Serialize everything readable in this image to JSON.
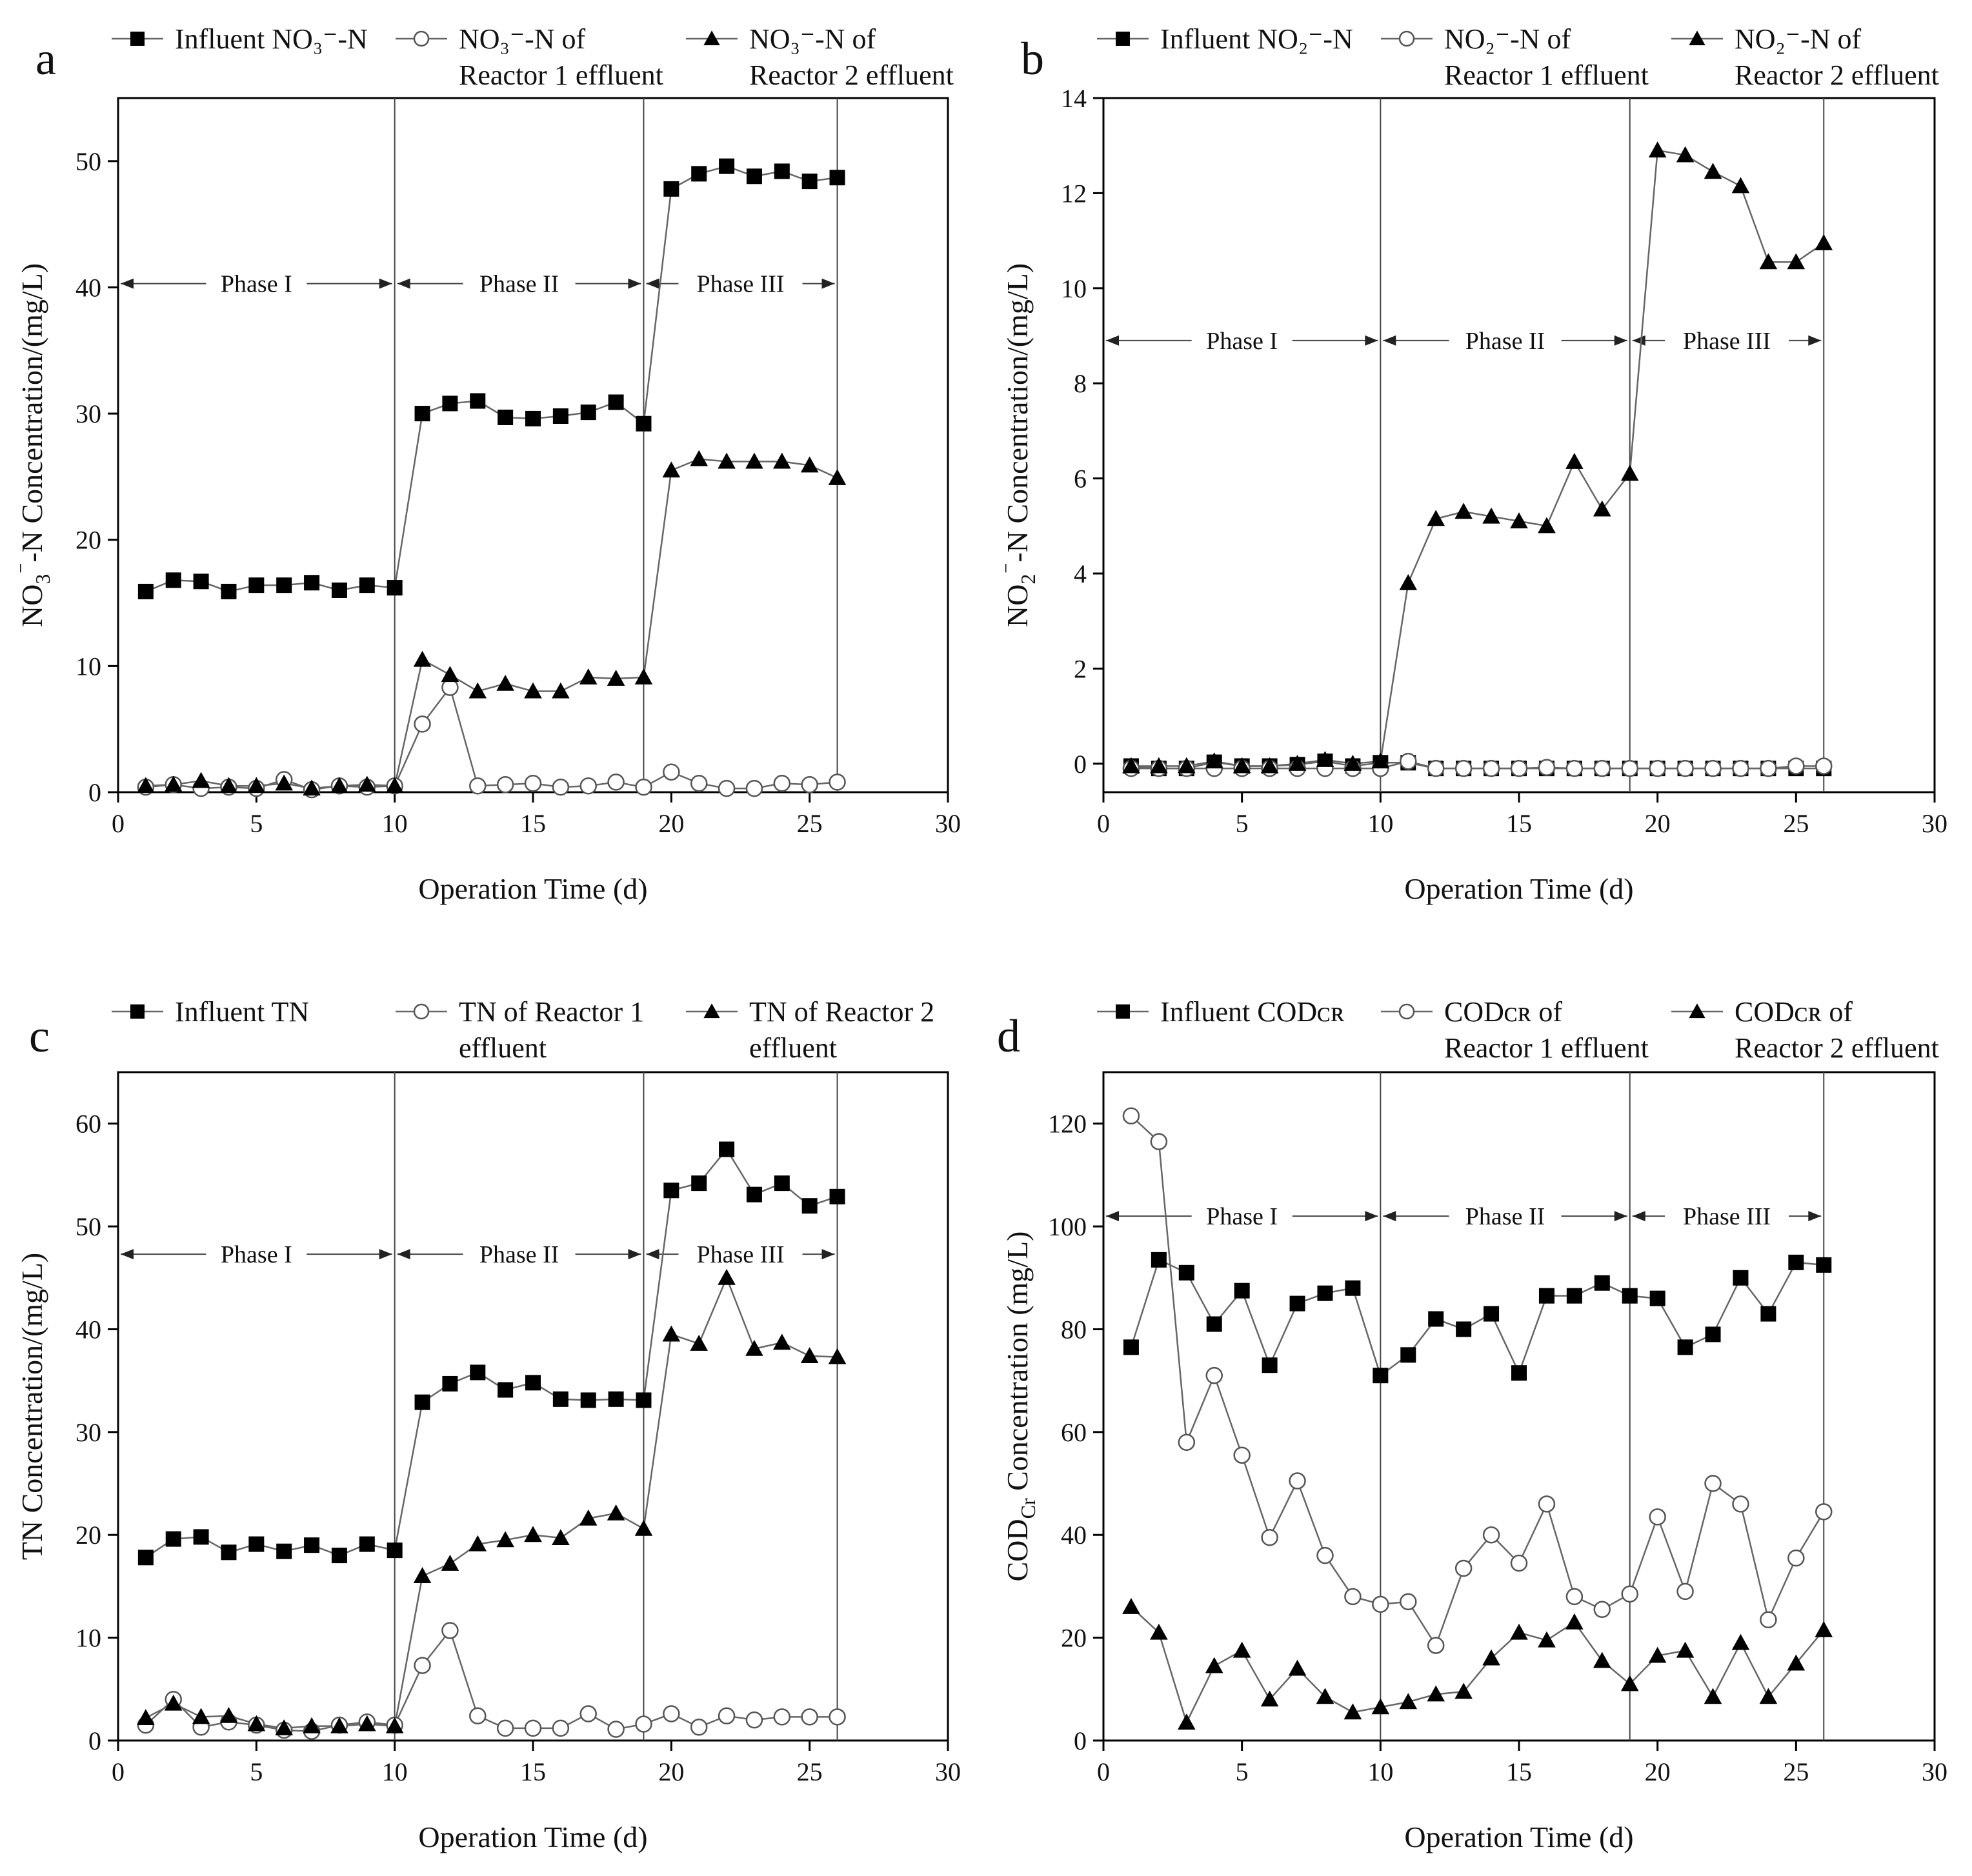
{
  "chart_data": [
    {
      "id": "a",
      "type": "line",
      "panel_label": "a",
      "xlabel": "Operation Time (d)",
      "ylabel_parts": [
        "NO",
        "3",
        "⁻",
        "-N  Concentration/(mg/L)"
      ],
      "xlim": [
        0,
        30
      ],
      "ylim": [
        0,
        55
      ],
      "xticks": [
        0,
        5,
        10,
        15,
        20,
        25,
        30
      ],
      "yticks": [
        0,
        10,
        20,
        30,
        40,
        50
      ],
      "phase_boundaries": [
        10,
        19,
        26
      ],
      "phase_y": 40.3,
      "phases": [
        {
          "label": "Phase I",
          "x0": 0,
          "x1": 10
        },
        {
          "label": "Phase II",
          "x0": 10,
          "x1": 19
        },
        {
          "label": "Phase III",
          "x0": 19,
          "x1": 26
        }
      ],
      "legend": [
        {
          "marker": "square",
          "lines": [
            "Influent  NO₃⁻-N"
          ]
        },
        {
          "marker": "circle",
          "lines": [
            "NO₃⁻-N of",
            "Reactor 1 effluent"
          ]
        },
        {
          "marker": "triangle",
          "lines": [
            "NO₃⁻-N of",
            "Reactor 2 effluent"
          ]
        }
      ],
      "x": [
        1,
        2,
        3,
        4,
        5,
        6,
        7,
        8,
        9,
        10,
        11,
        12,
        13,
        14,
        15,
        16,
        17,
        18,
        19,
        20,
        21,
        22,
        23,
        24,
        25,
        26
      ],
      "series": [
        {
          "name": "Influent NO3--N",
          "marker": "square",
          "values": [
            15.9,
            16.8,
            16.7,
            15.9,
            16.4,
            16.4,
            16.6,
            16.0,
            16.4,
            16.2,
            30.0,
            30.8,
            31.0,
            29.7,
            29.6,
            29.8,
            30.1,
            30.9,
            29.2,
            47.8,
            49.0,
            49.6,
            48.8,
            49.2,
            48.4,
            48.7
          ]
        },
        {
          "name": "NO3--N of Reactor 1 effluent",
          "marker": "circle",
          "values": [
            0.4,
            0.6,
            0.3,
            0.4,
            0.3,
            1.0,
            0.2,
            0.5,
            0.4,
            0.5,
            5.4,
            8.3,
            0.5,
            0.6,
            0.7,
            0.4,
            0.5,
            0.8,
            0.4,
            1.6,
            0.7,
            0.3,
            0.3,
            0.7,
            0.6,
            0.8
          ]
        },
        {
          "name": "NO3--N of Reactor 2 effluent",
          "marker": "triangle",
          "values": [
            0.5,
            0.6,
            0.9,
            0.5,
            0.5,
            0.7,
            0.3,
            0.5,
            0.6,
            0.5,
            10.5,
            9.3,
            8.0,
            8.6,
            8.0,
            8.0,
            9.1,
            9.0,
            9.1,
            25.5,
            26.4,
            26.2,
            26.2,
            26.2,
            25.9,
            24.9
          ]
        }
      ]
    },
    {
      "id": "b",
      "type": "line",
      "panel_label": "b",
      "xlabel": "Operation Time (d)",
      "ylabel_parts": [
        "NO",
        "2",
        "⁻",
        "-N  Concentration/(mg/L)"
      ],
      "xlim": [
        0,
        30
      ],
      "ylim": [
        -0.6,
        14
      ],
      "xticks": [
        0,
        5,
        10,
        15,
        20,
        25,
        30
      ],
      "yticks": [
        0,
        2,
        4,
        6,
        8,
        10,
        12,
        14
      ],
      "phase_boundaries": [
        10,
        19,
        26
      ],
      "phase_y": 8.9,
      "phases": [
        {
          "label": "Phase I",
          "x0": 0,
          "x1": 10
        },
        {
          "label": "Phase II",
          "x0": 10,
          "x1": 19
        },
        {
          "label": "Phase III",
          "x0": 19,
          "x1": 26
        }
      ],
      "legend": [
        {
          "marker": "square",
          "lines": [
            "Influent  NO₂⁻-N"
          ]
        },
        {
          "marker": "circle",
          "lines": [
            "NO₂⁻-N of",
            "Reactor 1 effluent"
          ]
        },
        {
          "marker": "triangle",
          "lines": [
            "NO₂⁻-N of",
            "Reactor 2 effluent"
          ]
        }
      ],
      "x": [
        1,
        2,
        3,
        4,
        5,
        6,
        7,
        8,
        9,
        10,
        11,
        12,
        13,
        14,
        15,
        16,
        17,
        18,
        19,
        20,
        21,
        22,
        23,
        24,
        25,
        26
      ],
      "series": [
        {
          "name": "Influent NO2--N",
          "marker": "square",
          "values": [
            -0.05,
            -0.1,
            -0.1,
            0.03,
            -0.05,
            -0.05,
            -0.02,
            0.05,
            -0.05,
            0.02,
            0.02,
            -0.1,
            -0.1,
            -0.1,
            -0.1,
            -0.1,
            -0.1,
            -0.1,
            -0.1,
            -0.1,
            -0.1,
            -0.1,
            -0.1,
            -0.1,
            -0.1,
            -0.1
          ]
        },
        {
          "name": "NO2--N of Reactor 1 effluent",
          "marker": "circle",
          "values": [
            -0.1,
            -0.1,
            -0.1,
            -0.1,
            -0.1,
            -0.1,
            -0.1,
            -0.1,
            -0.1,
            -0.1,
            0.05,
            -0.1,
            -0.1,
            -0.1,
            -0.1,
            -0.08,
            -0.1,
            -0.1,
            -0.1,
            -0.1,
            -0.1,
            -0.1,
            -0.1,
            -0.1,
            -0.05,
            -0.05
          ]
        },
        {
          "name": "NO2--N of Reactor 2 effluent",
          "marker": "triangle",
          "values": [
            -0.05,
            -0.05,
            -0.05,
            0.05,
            -0.05,
            -0.05,
            0.0,
            0.08,
            0.0,
            0.05,
            3.8,
            5.15,
            5.3,
            5.2,
            5.1,
            5.0,
            6.35,
            5.35,
            6.1,
            12.9,
            12.8,
            12.45,
            12.15,
            10.55,
            10.55,
            10.95
          ]
        }
      ]
    },
    {
      "id": "c",
      "type": "line",
      "panel_label": "c",
      "xlabel": "Operation Time (d)",
      "ylabel_parts": [
        "TN  Concentration/(mg/L)"
      ],
      "xlim": [
        0,
        30
      ],
      "ylim": [
        0,
        65
      ],
      "xticks": [
        0,
        5,
        10,
        15,
        20,
        25,
        30
      ],
      "yticks": [
        0,
        10,
        20,
        30,
        40,
        50,
        60
      ],
      "phase_boundaries": [
        10,
        19,
        26
      ],
      "phase_y": 47.3,
      "phases": [
        {
          "label": "Phase I",
          "x0": 0,
          "x1": 10
        },
        {
          "label": "Phase II",
          "x0": 10,
          "x1": 19
        },
        {
          "label": "Phase III",
          "x0": 19,
          "x1": 26
        }
      ],
      "legend": [
        {
          "marker": "square",
          "lines": [
            "Influent  TN"
          ]
        },
        {
          "marker": "circle",
          "lines": [
            "TN of Reactor 1",
            "effluent"
          ]
        },
        {
          "marker": "triangle",
          "lines": [
            "TN of Reactor 2",
            "effluent"
          ]
        }
      ],
      "x": [
        1,
        2,
        3,
        4,
        5,
        6,
        7,
        8,
        9,
        10,
        11,
        12,
        13,
        14,
        15,
        16,
        17,
        18,
        19,
        20,
        21,
        22,
        23,
        24,
        25,
        26
      ],
      "series": [
        {
          "name": "Influent TN",
          "marker": "square",
          "values": [
            17.8,
            19.6,
            19.8,
            18.3,
            19.1,
            18.4,
            19.0,
            18.0,
            19.1,
            18.5,
            32.9,
            34.7,
            35.8,
            34.1,
            34.8,
            33.2,
            33.1,
            33.2,
            33.1,
            53.5,
            54.2,
            57.5,
            53.1,
            54.2,
            52.0,
            52.9
          ]
        },
        {
          "name": "TN of Reactor 1 effluent",
          "marker": "circle",
          "values": [
            1.5,
            4.0,
            1.3,
            1.8,
            1.5,
            1.0,
            0.9,
            1.5,
            1.8,
            1.5,
            7.3,
            10.7,
            2.4,
            1.2,
            1.2,
            1.2,
            2.6,
            1.1,
            1.6,
            2.6,
            1.3,
            2.4,
            2.0,
            2.3,
            2.3,
            2.3
          ]
        },
        {
          "name": "TN of Reactor 2 effluent",
          "marker": "triangle",
          "values": [
            2.2,
            3.6,
            2.3,
            2.4,
            1.6,
            1.2,
            1.4,
            1.4,
            1.6,
            1.4,
            16.0,
            17.2,
            19.1,
            19.5,
            20.0,
            19.7,
            21.6,
            22.1,
            20.6,
            39.5,
            38.6,
            45.0,
            38.1,
            38.7,
            37.4,
            37.3
          ]
        }
      ]
    },
    {
      "id": "d",
      "type": "line",
      "panel_label": "d",
      "xlabel": "Operation Time (d)",
      "ylabel_parts": [
        "COD",
        "Cr",
        "",
        "  Concentration (mg/L)"
      ],
      "xlim": [
        0,
        30
      ],
      "ylim": [
        0,
        130
      ],
      "xticks": [
        0,
        5,
        10,
        15,
        20,
        25,
        30
      ],
      "yticks": [
        0,
        20,
        40,
        60,
        80,
        100,
        120
      ],
      "phase_boundaries": [
        10,
        19,
        26
      ],
      "phase_y": 102.0,
      "phases": [
        {
          "label": "Phase I",
          "x0": 0,
          "x1": 10
        },
        {
          "label": "Phase II",
          "x0": 10,
          "x1": 19
        },
        {
          "label": "Phase III",
          "x0": 19,
          "x1": 26
        }
      ],
      "legend": [
        {
          "marker": "square",
          "lines": [
            "Influent  CODᴄʀ"
          ]
        },
        {
          "marker": "circle",
          "lines": [
            "CODᴄʀ of",
            "Reactor 1 effluent"
          ]
        },
        {
          "marker": "triangle",
          "lines": [
            "CODᴄʀ of",
            "Reactor 2 effluent"
          ]
        }
      ],
      "x": [
        1,
        2,
        3,
        4,
        5,
        6,
        7,
        8,
        9,
        10,
        11,
        12,
        13,
        14,
        15,
        16,
        17,
        18,
        19,
        20,
        21,
        22,
        23,
        24,
        25,
        26
      ],
      "series": [
        {
          "name": "Influent CODCr",
          "marker": "square",
          "values": [
            76.5,
            93.5,
            91.0,
            81.0,
            87.5,
            73.0,
            85.0,
            87.0,
            88.0,
            71.0,
            75.0,
            82.0,
            80.0,
            83.0,
            71.5,
            86.5,
            86.5,
            89.0,
            86.5,
            86.0,
            76.5,
            79.0,
            90.0,
            83.0,
            93.0,
            92.5
          ]
        },
        {
          "name": "CODCr of Reactor 1 effluent",
          "marker": "circle",
          "values": [
            121.5,
            116.5,
            58.0,
            71.0,
            55.5,
            39.5,
            50.5,
            36.0,
            28.0,
            26.5,
            27.0,
            18.5,
            33.5,
            40.0,
            34.5,
            46.0,
            28.0,
            25.5,
            28.5,
            43.5,
            29.0,
            50.0,
            46.0,
            23.5,
            35.5,
            44.5
          ]
        },
        {
          "name": "CODCr of Reactor 2 effluent",
          "marker": "triangle",
          "values": [
            26.0,
            21.0,
            3.5,
            14.5,
            17.5,
            8.0,
            14.0,
            8.5,
            5.5,
            6.5,
            7.5,
            9.0,
            9.5,
            16.0,
            21.0,
            19.5,
            23.0,
            15.5,
            11.0,
            16.5,
            17.5,
            8.5,
            19.0,
            8.5,
            15.0,
            21.5
          ]
        }
      ]
    }
  ]
}
